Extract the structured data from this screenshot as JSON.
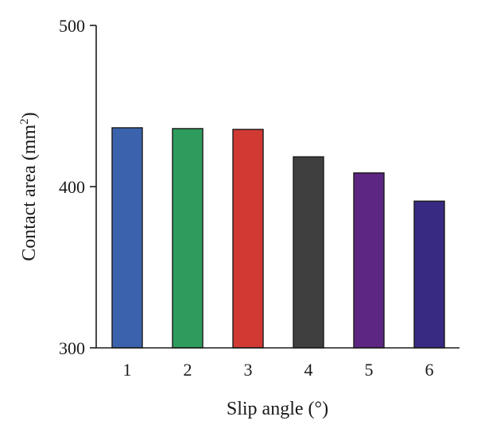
{
  "chart_data": {
    "type": "bar",
    "categories": [
      "1",
      "2",
      "3",
      "4",
      "5",
      "6"
    ],
    "values": [
      436.5,
      436.0,
      435.5,
      418.5,
      408.5,
      391.0
    ],
    "colors": [
      "#3b63ad",
      "#2e9c5d",
      "#d13a33",
      "#3f3f3f",
      "#5d2683",
      "#382a83"
    ],
    "title": "",
    "xlabel": "Slip angle (°)",
    "ylabel_main": "Contact area (mm",
    "ylabel_sup": "2",
    "ylabel_close": ")",
    "ylim": [
      300,
      500
    ],
    "yticks": [
      "300",
      "400",
      "500"
    ],
    "yticks_values": [
      300,
      400,
      500
    ],
    "grid": false,
    "legend": "none"
  }
}
